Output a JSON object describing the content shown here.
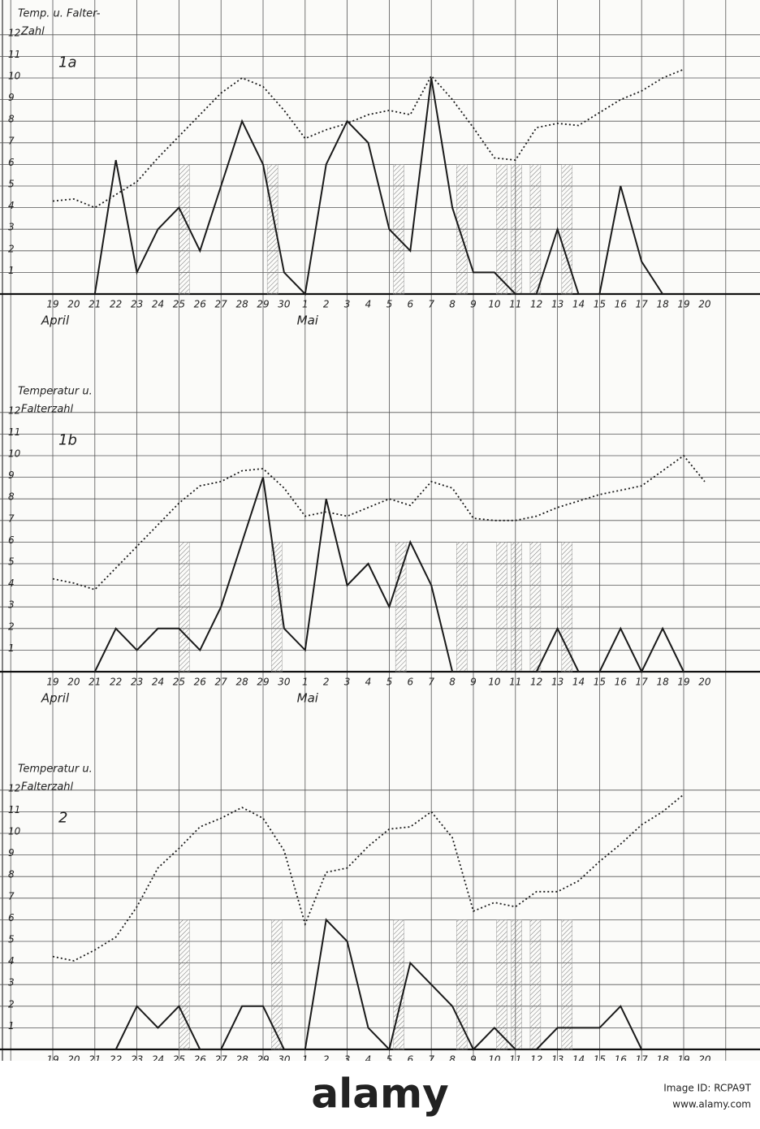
{
  "chart_data": [
    {
      "type": "line",
      "panel": "1a",
      "y_label": [
        "Temp. u. Falter-",
        "Zahl"
      ],
      "categories": [
        "19",
        "20",
        "21",
        "22",
        "23",
        "24",
        "25",
        "26",
        "27",
        "28",
        "29",
        "30",
        "1",
        "2",
        "3",
        "4",
        "5",
        "6",
        "7",
        "8",
        "9",
        "10",
        "11",
        "12",
        "13",
        "14",
        "15",
        "16",
        "17",
        "18",
        "19",
        "20"
      ],
      "months": [
        "April",
        "Mai"
      ],
      "ylim": [
        0,
        12
      ],
      "yticks": [
        1,
        2,
        3,
        4,
        5,
        6,
        7,
        8,
        9,
        10,
        11,
        12
      ],
      "grid": true,
      "hatched": {
        "x": [
          6.0,
          10.2,
          16.2,
          19.2,
          21.1,
          21.8,
          22.7,
          24.2
        ],
        "top": 6
      },
      "series": [
        {
          "color": "#1a1a1a",
          "style": "solid",
          "values": [
            null,
            null,
            0,
            6.2,
            1,
            3,
            4,
            2,
            5,
            8,
            6,
            1,
            0,
            6,
            8,
            7,
            3,
            2,
            10,
            4,
            1,
            1,
            0,
            0,
            3,
            0,
            0,
            5,
            1.5,
            0,
            null,
            null
          ]
        },
        {
          "color": "#1a1a1a",
          "style": "dotted",
          "values": [
            4.3,
            4.4,
            4.0,
            4.6,
            5.2,
            6.3,
            7.3,
            8.3,
            9.3,
            10.0,
            9.6,
            8.5,
            7.2,
            7.6,
            7.9,
            8.3,
            8.5,
            8.3,
            10.1,
            9.0,
            7.7,
            6.3,
            6.2,
            7.7,
            7.9,
            7.8,
            8.4,
            9.0,
            9.4,
            10.0,
            10.4,
            null
          ]
        }
      ]
    },
    {
      "type": "line",
      "panel": "1b",
      "y_label": [
        "Temperatur u.",
        "Falterzahl"
      ],
      "categories": [
        "19",
        "20",
        "21",
        "22",
        "23",
        "24",
        "25",
        "26",
        "27",
        "28",
        "29",
        "30",
        "1",
        "2",
        "3",
        "4",
        "5",
        "6",
        "7",
        "8",
        "9",
        "10",
        "11",
        "12",
        "13",
        "14",
        "15",
        "16",
        "17",
        "18",
        "19",
        "20"
      ],
      "months": [
        "April",
        "Mai"
      ],
      "ylim": [
        0,
        12
      ],
      "yticks": [
        1,
        2,
        3,
        4,
        5,
        6,
        7,
        8,
        9,
        10,
        11,
        12
      ],
      "grid": true,
      "hatched": {
        "x": [
          6.0,
          10.4,
          16.3,
          19.2,
          21.1,
          21.8,
          22.7,
          24.2
        ],
        "top": 6
      },
      "series": [
        {
          "color": "#1a1a1a",
          "style": "solid",
          "values": [
            null,
            null,
            0,
            2,
            1,
            2,
            2,
            1,
            3,
            6,
            9,
            2,
            1,
            8,
            4,
            5,
            3,
            6,
            4,
            0,
            0,
            0,
            0,
            0,
            2,
            0,
            0,
            2,
            0,
            2,
            0,
            null
          ]
        },
        {
          "color": "#1a1a1a",
          "style": "dotted",
          "values": [
            4.3,
            4.1,
            3.8,
            4.8,
            5.8,
            6.8,
            7.8,
            8.6,
            8.8,
            9.3,
            9.4,
            8.5,
            7.2,
            7.4,
            7.2,
            7.6,
            8.0,
            7.7,
            8.8,
            8.5,
            7.1,
            7.0,
            7.0,
            7.2,
            7.6,
            7.9,
            8.2,
            8.4,
            8.6,
            9.3,
            10.0,
            8.8
          ]
        }
      ]
    },
    {
      "type": "line",
      "panel": "2",
      "y_label": [
        "Temperatur u.",
        "Falterzahl"
      ],
      "categories": [
        "19",
        "20",
        "21",
        "22",
        "23",
        "24",
        "25",
        "26",
        "27",
        "28",
        "29",
        "30",
        "1",
        "2",
        "3",
        "4",
        "5",
        "6",
        "7",
        "8",
        "9",
        "10",
        "11",
        "12",
        "13",
        "14",
        "15",
        "16",
        "17",
        "18",
        "19",
        "20"
      ],
      "ylim": [
        0,
        12
      ],
      "yticks": [
        1,
        2,
        3,
        4,
        5,
        6,
        7,
        8,
        9,
        10,
        11,
        12
      ],
      "grid": true,
      "hatched": {
        "x": [
          6.0,
          10.4,
          16.2,
          19.2,
          21.1,
          21.8,
          22.7,
          24.2
        ],
        "top": 6
      },
      "series": [
        {
          "color": "#1a1a1a",
          "style": "solid",
          "values": [
            null,
            null,
            null,
            0,
            2,
            1,
            2,
            0,
            0,
            2,
            2,
            0,
            0,
            6,
            5,
            1,
            0,
            4,
            3,
            2,
            0,
            1,
            0,
            0,
            1,
            1,
            1,
            2,
            0,
            null,
            null,
            null
          ]
        },
        {
          "color": "#1a1a1a",
          "style": "dotted",
          "values": [
            4.3,
            4.1,
            4.6,
            5.2,
            6.6,
            8.4,
            9.3,
            10.3,
            10.7,
            11.2,
            10.7,
            9.2,
            5.8,
            8.2,
            8.4,
            9.4,
            10.2,
            10.3,
            11.0,
            9.8,
            6.4,
            6.8,
            6.6,
            7.3,
            7.3,
            7.8,
            8.7,
            9.5,
            10.4,
            11.0,
            11.8,
            null
          ]
        }
      ]
    }
  ],
  "watermark": {
    "brand": "alamy",
    "image_id": "Image ID: RCPA9T",
    "url": "www.alamy.com"
  }
}
